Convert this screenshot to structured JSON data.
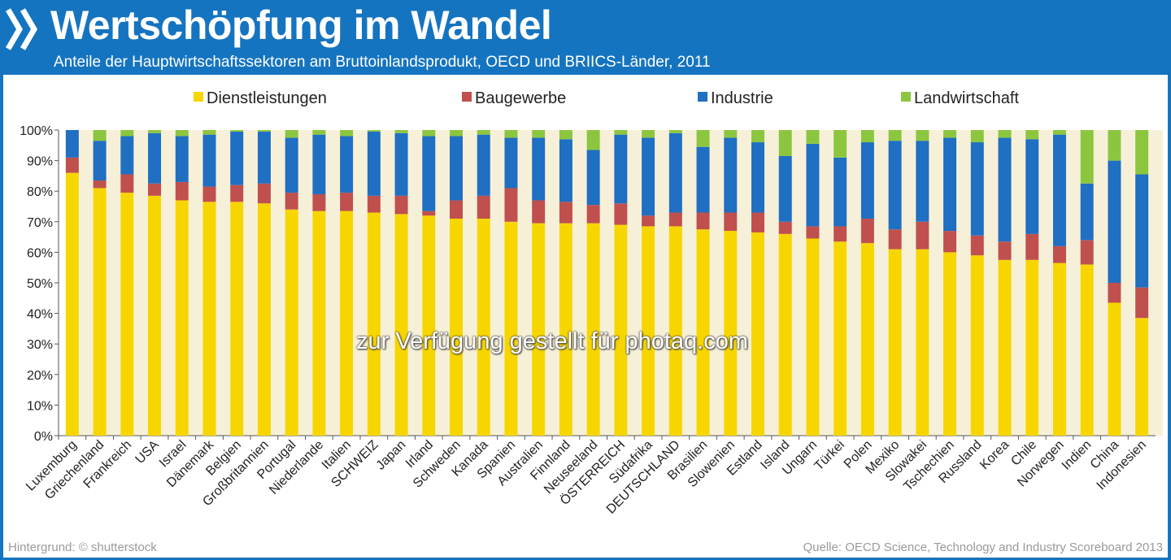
{
  "header": {
    "title": "Wertschöpfung im Wandel",
    "subtitle": "Anteile der Hauptwirtschaftssektoren am Bruttoinlandsprodukt, OECD und BRIICS-Länder, 2011"
  },
  "footer": {
    "background_credit": "Hintergrund: © shutterstock",
    "source": "Quelle: OECD Science, Technology and Industry Scoreboard 2013"
  },
  "watermark": "zur Verfügung gestellt für photaq.com",
  "colors": {
    "header": "#1574c0",
    "dienstleistungen": "#f7d600",
    "baugewerbe": "#c0504d",
    "industrie": "#1f6fc2",
    "landwirtschaft": "#8cc63f",
    "stripe": "#f7f0d8"
  },
  "chart_data": {
    "type": "bar",
    "stacked": true,
    "title": "",
    "xlabel": "",
    "ylabel": "",
    "ylim": [
      0,
      100
    ],
    "yticks": [
      "0%",
      "10%",
      "20%",
      "30%",
      "40%",
      "50%",
      "60%",
      "70%",
      "80%",
      "90%",
      "100%"
    ],
    "legend_position": "top",
    "categories": [
      "Luxemburg",
      "Griechenland",
      "Frankreich",
      "USA",
      "Israel",
      "Dänemark",
      "Belgien",
      "Großbritannien",
      "Portugal",
      "Niederlande",
      "Italien",
      "SCHWEIZ",
      "Japan",
      "Irland",
      "Schweden",
      "Kanada",
      "Spanien",
      "Australien",
      "Finnland",
      "Neuseeland",
      "ÖSTERREICH",
      "Südafrika",
      "DEUTSCHLAND",
      "Brasilien",
      "Slowenien",
      "Estland",
      "Island",
      "Ungarn",
      "Türkei",
      "Polen",
      "Mexiko",
      "Slowakei",
      "Tschechien",
      "Russland",
      "Korea",
      "Chile",
      "Norwegen",
      "Indien",
      "China",
      "Indonesien"
    ],
    "series": [
      {
        "name": "Dienstleistungen",
        "color": "#f7d600",
        "values": [
          86,
          81,
          79.5,
          78.5,
          77,
          76.5,
          76.5,
          76,
          74,
          73.5,
          73.5,
          73,
          72.5,
          72,
          71,
          71,
          70,
          69.5,
          69.5,
          69.5,
          69,
          68.5,
          68.5,
          67.5,
          67,
          66.5,
          66,
          64.5,
          63.5,
          63,
          61,
          61,
          60,
          59,
          57.5,
          57.5,
          56.5,
          56,
          43.5,
          38.5
        ]
      },
      {
        "name": "Baugewerbe",
        "color": "#c0504d",
        "values": [
          5,
          2.5,
          6,
          4,
          6,
          5,
          5.5,
          6.5,
          5.5,
          5.5,
          6,
          5.5,
          6,
          1.5,
          6,
          7.5,
          11,
          7.5,
          7,
          6,
          7,
          3.5,
          4.5,
          5.5,
          6,
          6.5,
          4,
          4,
          5,
          8,
          6.5,
          9,
          7,
          6.5,
          6,
          8.5,
          5.5,
          8,
          6.5,
          10
        ]
      },
      {
        "name": "Industrie",
        "color": "#1f6fc2",
        "values": [
          9,
          13,
          12.5,
          16.5,
          15,
          17,
          17.5,
          17,
          18,
          19.5,
          18.5,
          21,
          20.5,
          24.5,
          21,
          20,
          16.5,
          20.5,
          20.5,
          18,
          22.5,
          25.5,
          26,
          21.5,
          24.5,
          23,
          21.5,
          27,
          22.5,
          25,
          29,
          26.5,
          30.5,
          30.5,
          34,
          31,
          36.5,
          18.5,
          40,
          37
        ]
      },
      {
        "name": "Landwirtschaft",
        "color": "#8cc63f",
        "values": [
          0,
          3.5,
          2,
          1,
          2,
          1.5,
          0.5,
          0.5,
          2.5,
          1.5,
          2,
          0.5,
          1,
          2,
          2,
          1.5,
          2.5,
          2.5,
          3,
          6.5,
          1.5,
          2.5,
          1,
          5.5,
          2.5,
          4,
          8.5,
          4.5,
          9,
          4,
          3.5,
          3.5,
          2.5,
          4,
          2.5,
          3,
          1.5,
          17.5,
          10,
          14.5
        ]
      }
    ]
  }
}
